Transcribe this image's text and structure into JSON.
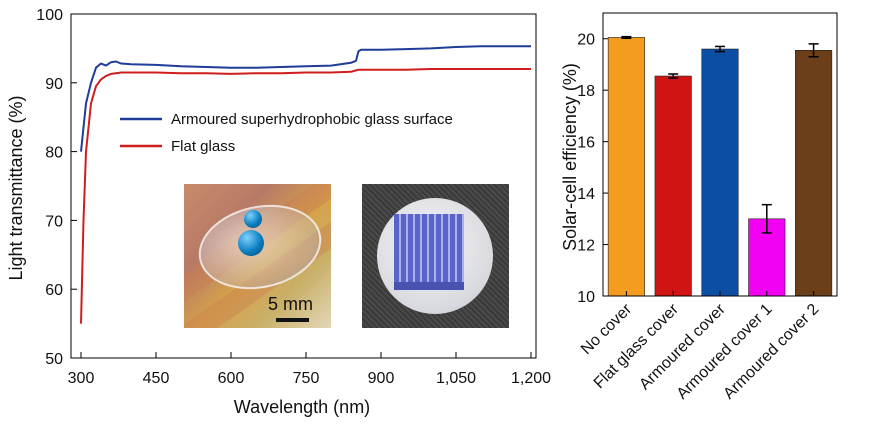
{
  "chart_data": [
    {
      "type": "line",
      "xlabel": "Wavelength (nm)",
      "ylabel": "Light transmittance (%)",
      "xlim": [
        280,
        1210
      ],
      "ylim": [
        50,
        100
      ],
      "xticks": [
        300,
        450,
        600,
        750,
        900,
        1050,
        1200
      ],
      "xtick_labels": [
        "300",
        "450",
        "600",
        "750",
        "900",
        "1,050",
        "1,200"
      ],
      "yticks": [
        50,
        60,
        70,
        80,
        90,
        100
      ],
      "ytick_labels": [
        "50",
        "60",
        "70",
        "80",
        "90",
        "100"
      ],
      "legend_position": "center",
      "series": [
        {
          "name": "Armoured superhydrophobic glass surface",
          "color": "#1f3c99",
          "x": [
            300,
            310,
            320,
            330,
            340,
            350,
            360,
            370,
            380,
            400,
            450,
            500,
            550,
            600,
            650,
            700,
            750,
            800,
            840,
            850,
            855,
            860,
            900,
            950,
            1000,
            1050,
            1100,
            1150,
            1200
          ],
          "y": [
            80,
            87,
            90,
            92.2,
            92.8,
            92.5,
            93,
            93.1,
            92.8,
            92.7,
            92.6,
            92.4,
            92.3,
            92.2,
            92.2,
            92.3,
            92.4,
            92.5,
            92.9,
            93.2,
            94.6,
            94.8,
            94.8,
            94.9,
            95.0,
            95.2,
            95.3,
            95.3,
            95.3
          ]
        },
        {
          "name": "Flat glass",
          "color": "#d01d1d",
          "x": [
            300,
            305,
            310,
            320,
            330,
            340,
            350,
            360,
            370,
            380,
            400,
            450,
            500,
            550,
            600,
            650,
            700,
            750,
            800,
            840,
            850,
            855,
            860,
            900,
            950,
            1000,
            1050,
            1100,
            1150,
            1200
          ],
          "y": [
            55,
            70,
            80,
            87,
            89.5,
            90.5,
            91,
            91.3,
            91.4,
            91.5,
            91.5,
            91.5,
            91.4,
            91.4,
            91.3,
            91.4,
            91.4,
            91.5,
            91.5,
            91.6,
            91.8,
            91.9,
            91.9,
            91.9,
            91.9,
            92.0,
            92.0,
            92.0,
            92.0,
            92.0
          ]
        }
      ],
      "inset": {
        "scale_label": "5 mm"
      }
    },
    {
      "type": "bar",
      "ylabel": "Solar-cell efficiency (%)",
      "ylim": [
        10,
        21
      ],
      "yticks": [
        10,
        12,
        14,
        16,
        18,
        20
      ],
      "ytick_labels": [
        "10",
        "12",
        "14",
        "16",
        "18",
        "20"
      ],
      "categories": [
        "No cover",
        "Flat glass cover",
        "Armoured cover",
        "Armoured cover 1",
        "Armoured cover 2"
      ],
      "values": [
        20.05,
        18.55,
        19.6,
        13.0,
        19.55
      ],
      "errors": [
        0.03,
        0.08,
        0.1,
        0.55,
        0.25
      ],
      "colors": [
        "#f39c1f",
        "#d01414",
        "#0b4ea2",
        "#f200f2",
        "#6b3f19"
      ]
    }
  ]
}
